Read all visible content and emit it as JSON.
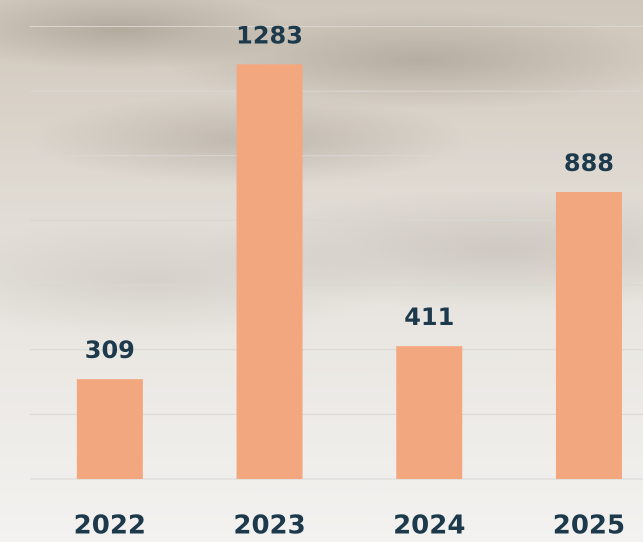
{
  "chart_data": {
    "type": "bar",
    "categories": [
      "2022",
      "2023",
      "2024",
      "2025"
    ],
    "values": [
      309,
      1283,
      411,
      888
    ],
    "color": "#f2a77f",
    "ylim": [
      0,
      1400
    ],
    "yticks": [
      0,
      200,
      400,
      600,
      800,
      1000,
      1200,
      1400
    ],
    "grid": true
  }
}
